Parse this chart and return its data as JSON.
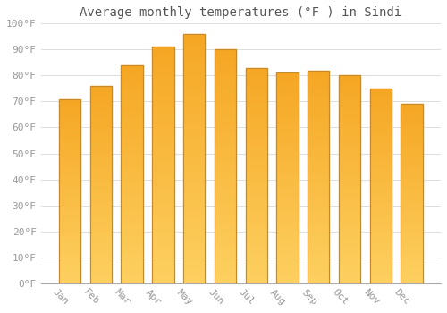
{
  "title": "Average monthly temperatures (°F ) in Sindi",
  "months": [
    "Jan",
    "Feb",
    "Mar",
    "Apr",
    "May",
    "Jun",
    "Jul",
    "Aug",
    "Sep",
    "Oct",
    "Nov",
    "Dec"
  ],
  "values": [
    71,
    76,
    84,
    91,
    96,
    90,
    83,
    81,
    82,
    80,
    75,
    69
  ],
  "bar_color_top": "#F5A623",
  "bar_color_bottom": "#FDD060",
  "bar_edge_color": "#C8892A",
  "ylim": [
    0,
    100
  ],
  "yticks": [
    0,
    10,
    20,
    30,
    40,
    50,
    60,
    70,
    80,
    90,
    100
  ],
  "ytick_labels": [
    "0°F",
    "10°F",
    "20°F",
    "30°F",
    "40°F",
    "50°F",
    "60°F",
    "70°F",
    "80°F",
    "90°F",
    "100°F"
  ],
  "grid_color": "#dddddd",
  "background_color": "#ffffff",
  "title_fontsize": 10,
  "tick_fontsize": 8,
  "bar_width": 0.7,
  "xlabel_rotation": -45
}
